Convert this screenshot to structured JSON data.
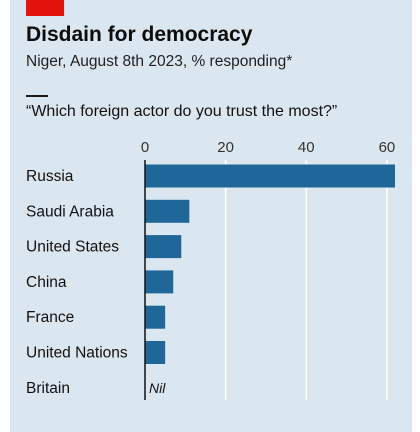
{
  "header": {
    "title": "Disdain for democracy",
    "subtitle": "Niger, August 8th 2023, % responding*",
    "question": "“Which foreign actor do you trust the most?”"
  },
  "colors": {
    "background": "#dbe7f0",
    "bar": "#1f6799",
    "brand_tag": "#e3120b",
    "gridline": "#ffffff"
  },
  "chart_data": {
    "type": "bar",
    "orientation": "horizontal",
    "title": "Disdain for democracy",
    "subtitle": "Niger, August 8th 2023, % responding*",
    "question": "“Which foreign actor do you trust the most?”",
    "categories": [
      "Russia",
      "Saudi Arabia",
      "United States",
      "China",
      "France",
      "United Nations",
      "Britain"
    ],
    "values": [
      62,
      11,
      9,
      7,
      5,
      5,
      0
    ],
    "value_labels": [
      "",
      "",
      "",
      "",
      "",
      "",
      "Nil"
    ],
    "xticks": [
      "0",
      "20",
      "40",
      "60"
    ],
    "xlim": [
      0,
      62.5
    ],
    "grid": true,
    "axis_position": "top"
  }
}
